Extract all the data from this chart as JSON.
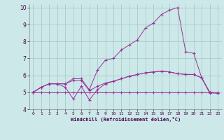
{
  "xlabel": "Windchill (Refroidissement éolien,°C)",
  "bg_color": "#cce8e8",
  "grid_color": "#aacccc",
  "line_color": "#993399",
  "xlim": [
    -0.5,
    23.5
  ],
  "ylim": [
    4,
    10.2
  ],
  "yticks": [
    4,
    5,
    6,
    7,
    8,
    9,
    10
  ],
  "xticks": [
    0,
    1,
    2,
    3,
    4,
    5,
    6,
    7,
    8,
    9,
    10,
    11,
    12,
    13,
    14,
    15,
    16,
    17,
    18,
    19,
    20,
    21,
    22,
    23
  ],
  "series": [
    [
      5.0,
      5.3,
      5.5,
      5.5,
      5.5,
      5.8,
      5.8,
      5.15,
      6.3,
      6.9,
      7.0,
      7.5,
      7.8,
      8.1,
      8.8,
      9.1,
      9.6,
      9.85,
      10.0,
      7.4,
      7.3,
      5.85,
      4.95,
      4.95
    ],
    [
      5.0,
      5.3,
      5.5,
      5.5,
      5.3,
      4.6,
      5.35,
      4.55,
      5.15,
      5.5,
      5.65,
      5.8,
      5.95,
      6.05,
      6.15,
      6.2,
      6.25,
      6.2,
      6.1,
      6.05,
      6.05,
      5.85,
      5.0,
      4.95
    ],
    [
      5.0,
      5.3,
      5.5,
      5.5,
      5.5,
      5.7,
      5.7,
      5.1,
      5.35,
      5.55,
      5.65,
      5.8,
      5.95,
      6.05,
      6.15,
      6.2,
      6.25,
      6.2,
      6.1,
      6.05,
      6.05,
      5.85,
      5.0,
      4.95
    ],
    [
      5.0,
      5.0,
      5.0,
      5.0,
      5.0,
      5.0,
      5.0,
      5.0,
      5.0,
      5.0,
      5.0,
      5.0,
      5.0,
      5.0,
      5.0,
      5.0,
      5.0,
      5.0,
      5.0,
      5.0,
      5.0,
      5.0,
      5.0,
      5.0
    ]
  ]
}
